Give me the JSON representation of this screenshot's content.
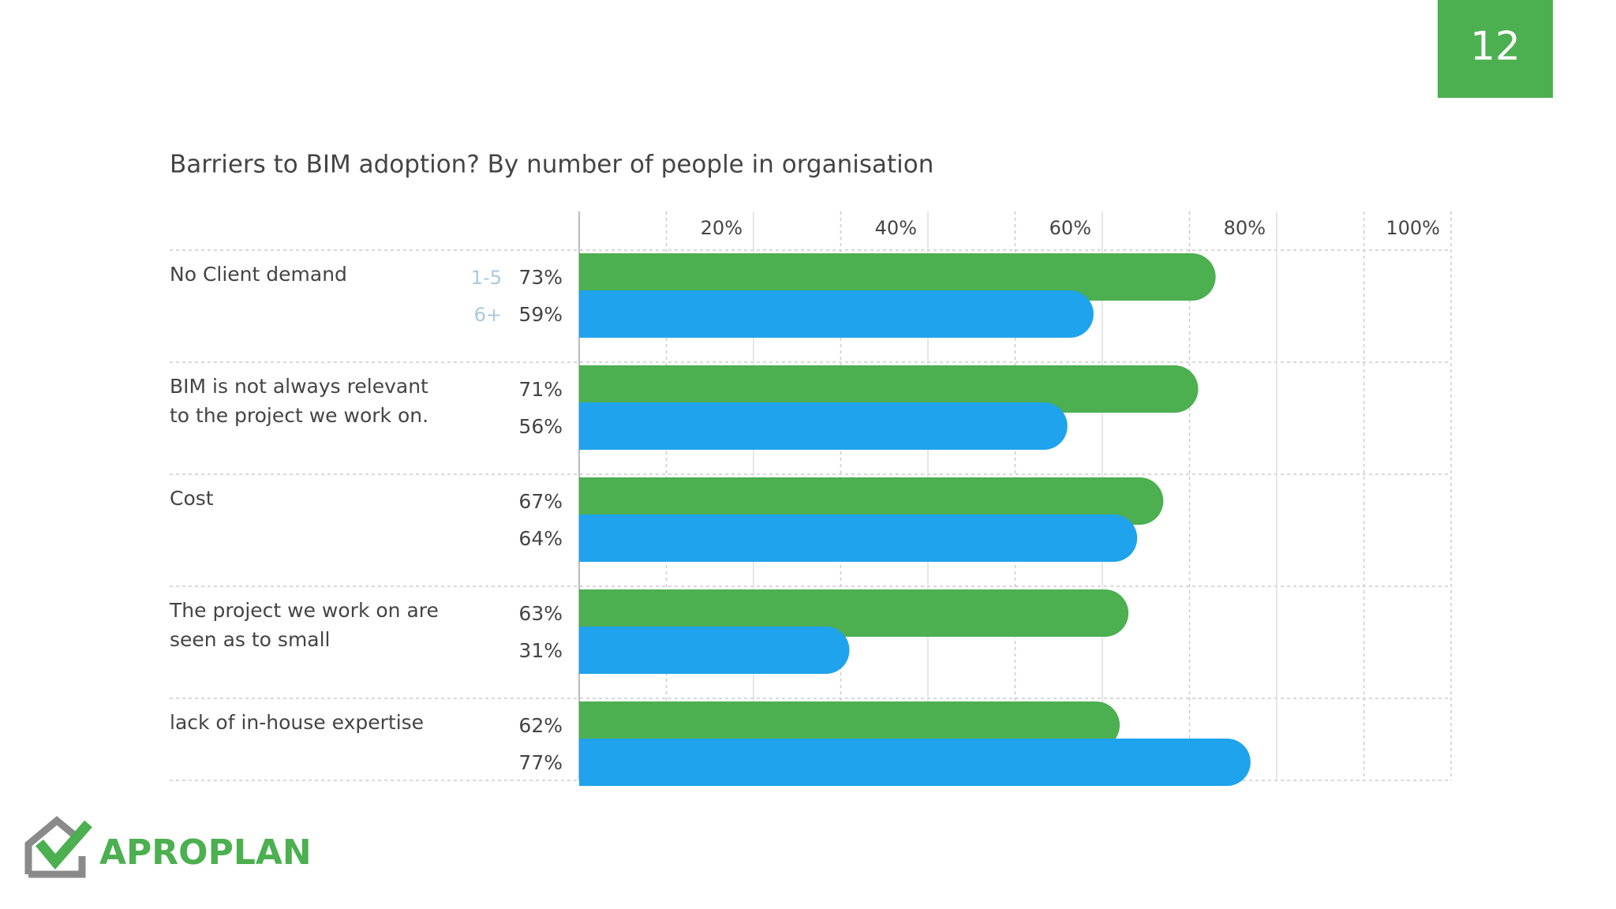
{
  "page_number": "12",
  "logo": "APROPLAN",
  "chart_data": {
    "type": "bar",
    "orientation": "horizontal",
    "title": "Barriers to BIM adoption? By number of people in organisation",
    "categories": [
      "No Client demand",
      "BIM is not always relevant to the project we work on.",
      "Cost",
      "The project we work on are seen as to small",
      "lack of in-house expertise"
    ],
    "series": [
      {
        "name": "1-5",
        "color": "#4caf50",
        "values": [
          73,
          71,
          67,
          63,
          62
        ],
        "value_labels": [
          "73%",
          "71%",
          "67%",
          "63%",
          "62%"
        ]
      },
      {
        "name": "6+",
        "color": "#1fa3ec",
        "values": [
          59,
          56,
          64,
          31,
          77
        ],
        "value_labels": [
          "59%",
          "56%",
          "64%",
          "31%",
          "77%"
        ]
      }
    ],
    "xlim": [
      0,
      100
    ],
    "xticks": [
      {
        "value": 20,
        "label": "20%"
      },
      {
        "value": 40,
        "label": "40%"
      },
      {
        "value": 60,
        "label": "60%"
      },
      {
        "value": 80,
        "label": "80%"
      },
      {
        "value": 100,
        "label": "100%"
      }
    ],
    "x_minor_ticks": [
      10,
      30,
      50,
      70,
      90
    ],
    "grid": true
  }
}
